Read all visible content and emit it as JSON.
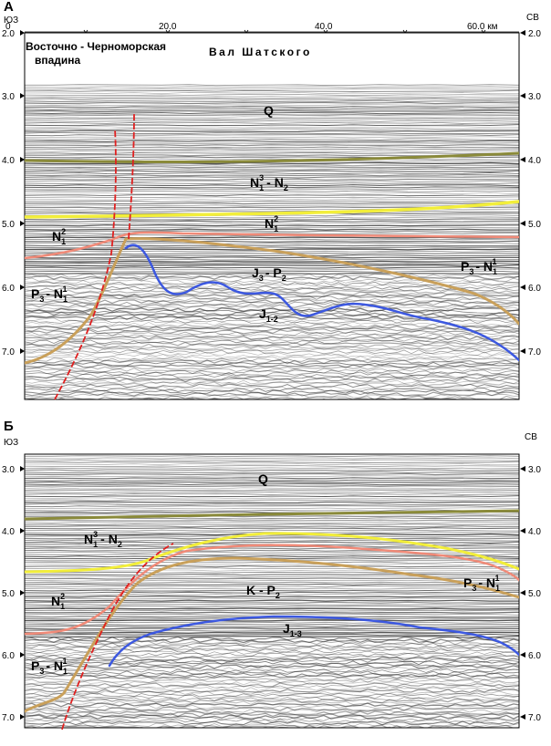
{
  "panelA": {
    "letter": "А",
    "dir_left": "ЮЗ",
    "dir_right": "СВ",
    "x_ticks": [
      {
        "value": 0,
        "label": "0"
      },
      {
        "value": 20,
        "label": "20.0"
      },
      {
        "value": 40,
        "label": "40.0"
      },
      {
        "value": 60,
        "label": "60.0 км"
      }
    ],
    "y_ticks": [
      "2.0",
      "3.0",
      "4.0",
      "5.0",
      "6.0",
      "7.0"
    ],
    "title_left_line1": "Восточно - Черноморская",
    "title_left_line2": "впадина",
    "title_center": "Вал Шатского",
    "labels": {
      "Q": "Q",
      "n13n2_main": "N",
      "n13n2_sub": "1",
      "n13n2_sup": "3",
      "n13n2_dash": "- N",
      "n13n2_sub2": "2",
      "n12_main": "N",
      "n12_sub": "1",
      "n12_sup": "2",
      "n12l_main": "N",
      "n12l_sub": "1",
      "n12l_sup": "2",
      "p3n1l_main": "P",
      "p3n1l_sub": "3",
      "p3n1l_dash": "- N",
      "p3n1l_sub2": "1",
      "p3n1l_sup2": "1",
      "p3n1r_main": "P",
      "p3n1r_sub": "3",
      "p3n1r_dash": "- N",
      "p3n1r_sub2": "1",
      "p3n1r_sup2": "1",
      "j3p2_main": "J",
      "j3p2_sub": "3",
      "j3p2_dash": "- P",
      "j3p2_sub2": "2",
      "j12_main": "J",
      "j12_sub": "1-2"
    }
  },
  "panelB": {
    "letter": "Б",
    "dir_left": "ЮЗ",
    "dir_right": "СВ",
    "y_ticks": [
      "3.0",
      "4.0",
      "5.0",
      "6.0",
      "7.0"
    ],
    "labels": {
      "Q": "Q",
      "n13n2_main": "N",
      "n13n2_sub": "1",
      "n13n2_sup": "3",
      "n13n2_dash": "- N",
      "n13n2_sub2": "2",
      "n12_main": "N",
      "n12_sub": "1",
      "n12_sup": "2",
      "kp2_main": "K - P",
      "kp2_sub": "2",
      "p3n1r_main": "P",
      "p3n1r_sub": "3",
      "p3n1r_dash": "- N",
      "p3n1r_sub2": "1",
      "p3n1r_sup2": "1",
      "p3n1l_main": "P",
      "p3n1l_sub": "3",
      "p3n1l_dash": "- N",
      "p3n1l_sub2": "1",
      "p3n1l_sup2": "1",
      "j13_main": "J",
      "j13_sub": "1-3"
    }
  },
  "colors": {
    "horizon_olive": "#8a8a3a",
    "horizon_yellow": "#f2ee3a",
    "horizon_salmon": "#f08a78",
    "horizon_tan": "#c9a05a",
    "horizon_blue": "#3c58e0",
    "fault_red": "#e02020"
  }
}
